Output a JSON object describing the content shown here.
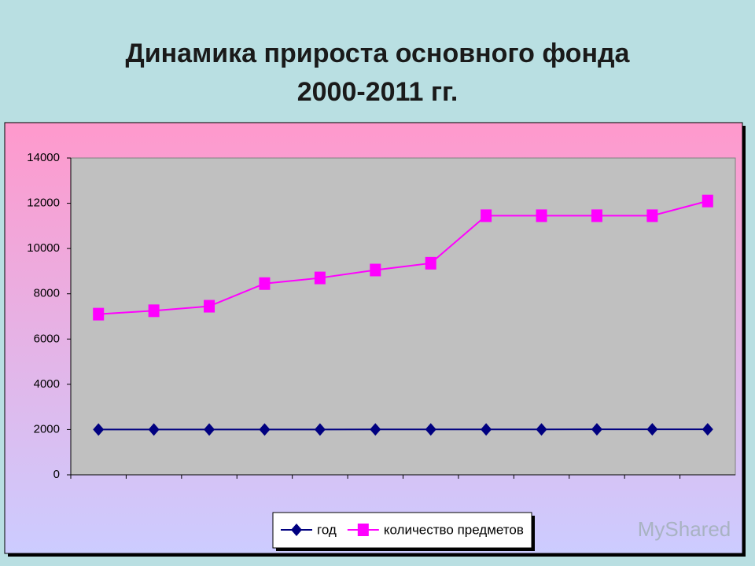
{
  "chart_data": {
    "type": "line",
    "title": "Динамика прироста основного фонда",
    "subtitle": "2000-2011 гг.",
    "categories": [
      null,
      null,
      null,
      null,
      null,
      null,
      null,
      null,
      null,
      null,
      null,
      null
    ],
    "series": [
      {
        "name": "год",
        "color": "#000080",
        "marker": "diamond",
        "values": [
          2000,
          2001,
          2002,
          2003,
          2004,
          2005,
          2006,
          2007,
          2008,
          2009,
          2010,
          2011
        ]
      },
      {
        "name": "количество предметов",
        "color": "#ff00ff",
        "marker": "square",
        "values": [
          7100,
          7250,
          7450,
          8450,
          8700,
          9050,
          9350,
          11450,
          11450,
          11450,
          11450,
          12100
        ]
      }
    ],
    "ylim": [
      0,
      14000
    ],
    "yticks": [
      0,
      2000,
      4000,
      6000,
      8000,
      10000,
      12000,
      14000
    ],
    "legend": "bottom"
  },
  "watermark": "MyShared"
}
